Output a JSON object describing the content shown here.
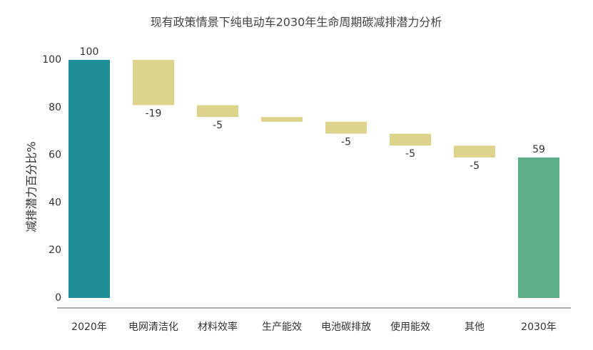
{
  "chart_data": {
    "type": "waterfall",
    "title": "现有政策情景下纯电动车2030年生命周期碳减排潜力分析",
    "y_label": "减排潜力百分比%",
    "categories": [
      "2020年",
      "电网清洁化",
      "材料效率",
      "生产能效",
      "电池碳排放",
      "使用能效",
      "其他",
      "2030年"
    ],
    "values": [
      100,
      -19,
      -5,
      -2,
      -5,
      -5,
      -5,
      59
    ],
    "value_labels": [
      "100",
      "-19",
      "-5",
      null,
      "-5",
      "-5",
      "-5",
      "59"
    ],
    "is_total": [
      true,
      false,
      false,
      false,
      false,
      false,
      false,
      true
    ],
    "colors": [
      "#1f8e97",
      "#dcd38c",
      "#dcd38c",
      "#dcd38c",
      "#dcd38c",
      "#dcd38c",
      "#dcd38c",
      "#5daf8a"
    ],
    "ylim": [
      0,
      100
    ],
    "yticks": [
      0,
      20,
      40,
      60,
      80,
      100
    ],
    "grid": false
  }
}
